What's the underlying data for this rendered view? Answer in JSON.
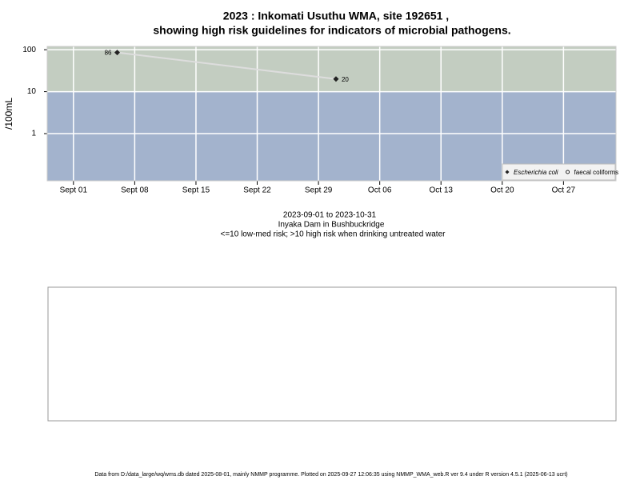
{
  "chart_data": {
    "type": "line",
    "title": "2023 : Inkomati Usuthu WMA, site 192651 ,",
    "subtitle": "showing high risk guidelines for indicators of microbial pathogens.",
    "y_label": "/100mL",
    "log_y": true,
    "grid": true,
    "legend_position": "bottom-right",
    "x": [
      "2023-09-06",
      "2023-10-01"
    ],
    "series": [
      {
        "name": "Escherichia coli",
        "color": "#222222",
        "line_color": "#dddddd",
        "marker": "diamond",
        "values": [
          86,
          20
        ]
      },
      {
        "name": "faecal coliforms",
        "color": "#222222",
        "marker": "circle",
        "values": [
          null,
          null
        ]
      }
    ],
    "xlim": [
      "2023-08-29",
      "2023-11-02"
    ],
    "xticks": [
      {
        "value": "2023-09-01",
        "label": "Sept 01"
      },
      {
        "value": "2023-09-08",
        "label": "Sept 08"
      },
      {
        "value": "2023-09-15",
        "label": "Sept 15"
      },
      {
        "value": "2023-09-22",
        "label": "Sept 22"
      },
      {
        "value": "2023-09-29",
        "label": "Sept 29"
      },
      {
        "value": "2023-10-06",
        "label": "Oct 06"
      },
      {
        "value": "2023-10-13",
        "label": "Oct 13"
      },
      {
        "value": "2023-10-20",
        "label": "Oct 20"
      },
      {
        "value": "2023-10-27",
        "label": "Oct 27"
      }
    ],
    "ylim": [
      0.075,
      120
    ],
    "yticks": [
      1,
      10,
      100
    ],
    "band_threshold": 10,
    "band_colors": {
      "below": "#a3b3cd",
      "above": "#c3cdc1"
    },
    "date_range": "2023-09-01 to 2023-10-31",
    "site_name": "Inyaka Dam in Bushbuckridge",
    "guideline_note": "<=10 low-med risk; >10 high risk when drinking untreated water",
    "footer": "Data from D:/data_large/wq/wms.db dated 2025-08-01, mainly NMMP programme. Plotted on 2025-09-27 12:06:35 using NMMP_WMA_web.R ver 9.4 under R version 4.5.1 (2025-06-13 ucrt)"
  }
}
